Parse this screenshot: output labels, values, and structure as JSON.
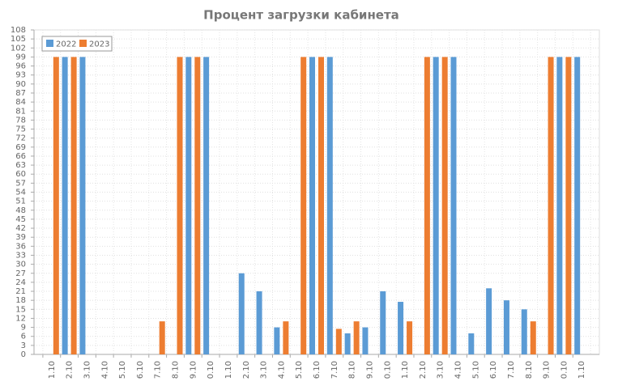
{
  "chart_data": {
    "type": "bar",
    "title": "Процент загрузки кабинета",
    "categories": [
      "1.10",
      "2.10",
      "3.10",
      "4.10",
      "5.10",
      "6.10",
      "7.10",
      "8.10",
      "9.10",
      "0.10",
      "1.10",
      "2.10",
      "3.10",
      "4.10",
      "5.10",
      "6.10",
      "7.10",
      "8.10",
      "9.10",
      "0.10",
      "1.10",
      "2.10",
      "3.10",
      "4.10",
      "5.10",
      "6.10",
      "7.10",
      "8.10",
      "9.10",
      "0.10",
      "1.10"
    ],
    "series": [
      {
        "name": "2022",
        "color": "#5b9bd5",
        "values": [
          0,
          99,
          99,
          0,
          0,
          0,
          0,
          0,
          99,
          99,
          0,
          27,
          21,
          9,
          0,
          99,
          99,
          7,
          9,
          21,
          17.5,
          0,
          99,
          99,
          7,
          22,
          18,
          15,
          0,
          99,
          99
        ]
      },
      {
        "name": "2023",
        "color": "#ed7d31",
        "values": [
          99,
          99,
          0,
          0,
          0,
          0,
          11,
          99,
          99,
          0,
          0,
          0,
          0,
          11,
          99,
          99,
          8.5,
          11,
          0,
          0,
          11,
          99,
          99,
          0,
          0,
          0,
          0,
          11,
          99,
          99,
          0
        ]
      }
    ],
    "ylim": [
      0,
      108
    ],
    "yticks": [
      0,
      3,
      6,
      9,
      12,
      15,
      18,
      21,
      24,
      27,
      30,
      33,
      36,
      39,
      42,
      45,
      48,
      51,
      54,
      57,
      60,
      63,
      66,
      69,
      72,
      75,
      78,
      81,
      84,
      87,
      90,
      93,
      96,
      99,
      102,
      105,
      108
    ],
    "grid": true,
    "legend": "top-left"
  }
}
